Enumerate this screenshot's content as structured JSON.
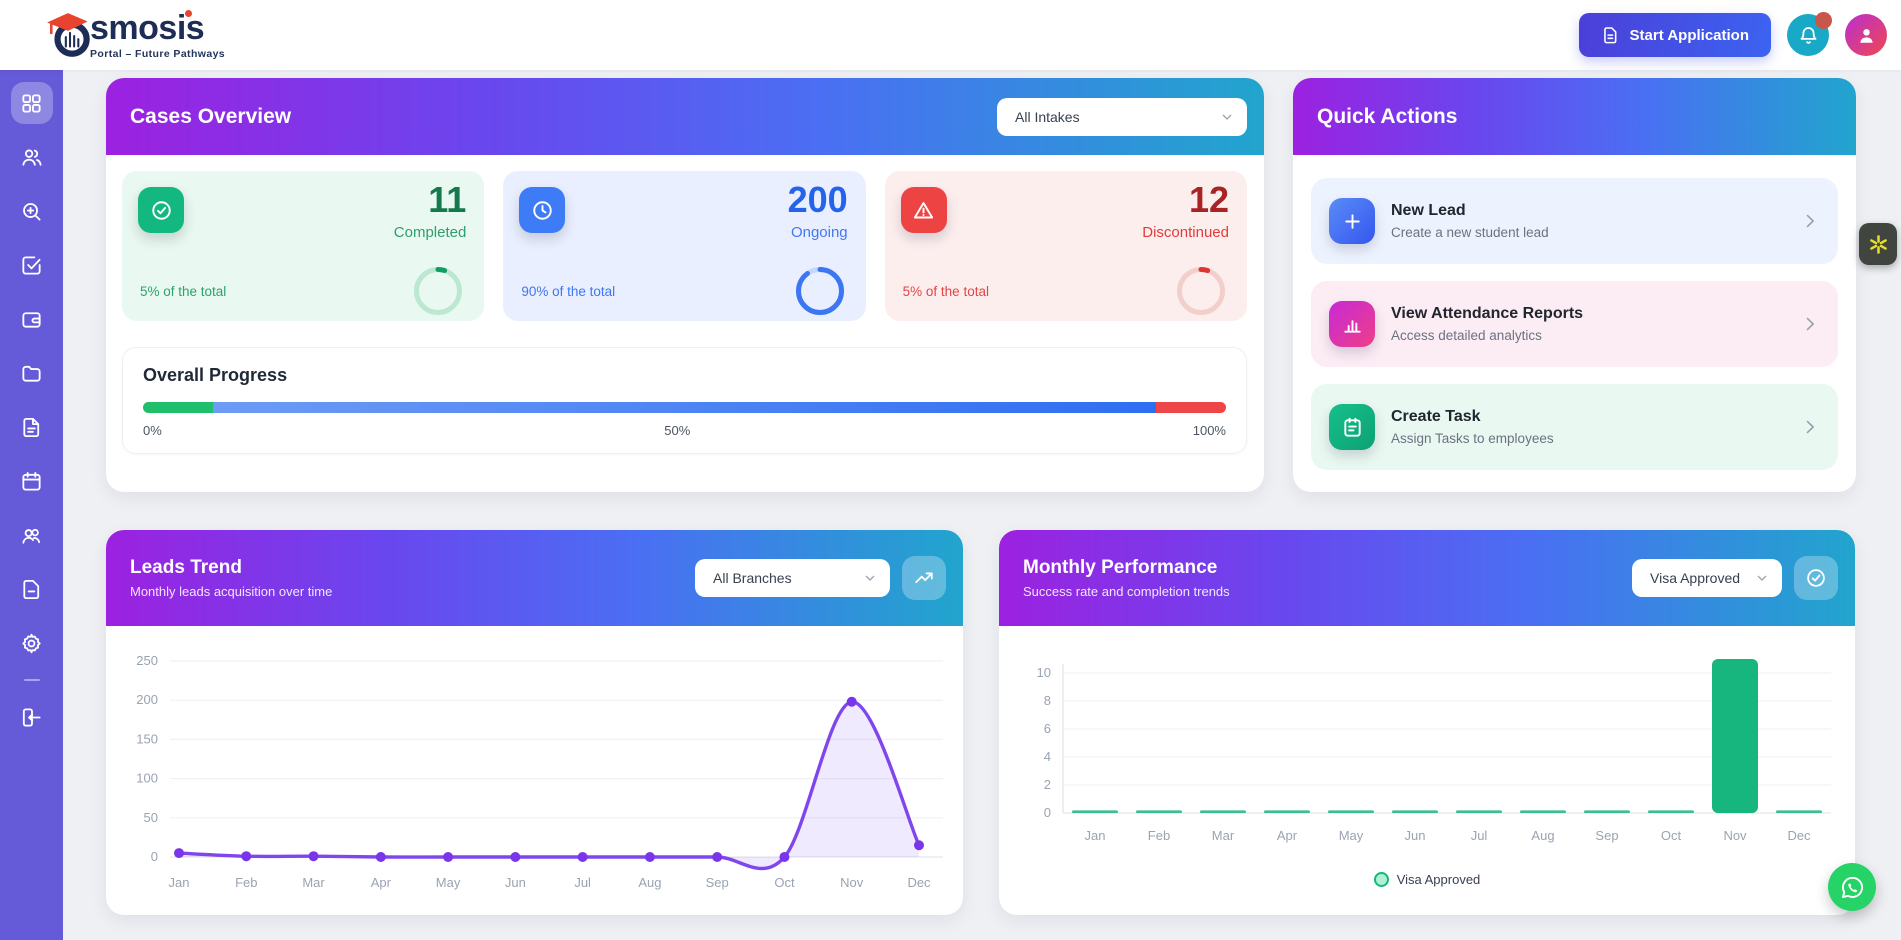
{
  "header": {
    "brand": "smosis",
    "tagline": "Portal – Future Pathways",
    "start_button": {
      "label": "Start Application",
      "icon": "file-doc"
    },
    "bell_icon": "bell",
    "avatar_icon": "person"
  },
  "sidebar": {
    "items": [
      {
        "id": "dashboard",
        "icon": "grid",
        "active": true
      },
      {
        "id": "leads",
        "icon": "users"
      },
      {
        "id": "search",
        "icon": "search-plus"
      },
      {
        "id": "tasks",
        "icon": "check-square"
      },
      {
        "id": "finance",
        "icon": "wallet"
      },
      {
        "id": "files",
        "icon": "folder"
      },
      {
        "id": "documents",
        "icon": "file-text"
      },
      {
        "id": "calendar",
        "icon": "calendar"
      },
      {
        "id": "students",
        "icon": "users-group"
      },
      {
        "id": "reports",
        "icon": "file"
      },
      {
        "id": "settings",
        "icon": "gear"
      },
      {
        "id": "logout",
        "icon": "logout",
        "divider_before": true
      }
    ]
  },
  "cases_overview": {
    "title": "Cases Overview",
    "filter_value": "All Intakes",
    "stats": [
      {
        "value": "11",
        "label": "Completed",
        "sub": "5% of the total",
        "percent": 5,
        "icon": "check-circle",
        "icon_bg": "#13b880",
        "ring_track": "#bce8d2",
        "ring_arc": "#0f9f63"
      },
      {
        "value": "200",
        "label": "Ongoing",
        "sub": "90% of the total",
        "percent": 90,
        "icon": "clock",
        "icon_bg": "#3e7bf7",
        "ring_track": "#c3d6fb",
        "ring_arc": "#3b76f3"
      },
      {
        "value": "12",
        "label": "Discontinued",
        "sub": "5% of the total",
        "percent": 5,
        "icon": "alert-triangle",
        "icon_bg": "#ee4343",
        "ring_track": "#f3cfcb",
        "ring_arc": "#dd3434"
      }
    ],
    "progress": {
      "title": "Overall Progress",
      "segments": [
        {
          "color": "#1fbf6b",
          "width": 6.5
        },
        {
          "color": "#6d9bf5",
          "color2": "#2f6ef2",
          "width": 87
        },
        {
          "color": "#ee4646",
          "width": 6.5
        }
      ],
      "labels": [
        "0%",
        "50%",
        "100%"
      ]
    }
  },
  "quick_actions": {
    "title": "Quick Actions",
    "items": [
      {
        "title": "New Lead",
        "subtitle": "Create a new student lead",
        "icon": "plus"
      },
      {
        "title": "View Attendance Reports",
        "subtitle": "Access detailed analytics",
        "icon": "bar-chart"
      },
      {
        "title": "Create Task",
        "subtitle": "Assign Tasks to employees",
        "icon": "task"
      }
    ]
  },
  "leads_trend": {
    "title": "Leads Trend",
    "subtitle": "Monthly leads acquisition over time",
    "filter_value": "All Branches",
    "button_icon": "trending-up"
  },
  "monthly_performance": {
    "title": "Monthly Performance",
    "subtitle": "Success rate and completion trends",
    "filter_value": "Visa Approved",
    "button_icon": "check-circle",
    "legend": "Visa Approved"
  },
  "chart_data": [
    {
      "type": "line",
      "title": "Leads Trend",
      "x": [
        "Jan",
        "Feb",
        "Mar",
        "Apr",
        "May",
        "Jun",
        "Jul",
        "Aug",
        "Sep",
        "Oct",
        "Nov",
        "Dec"
      ],
      "series": [
        {
          "name": "Leads",
          "values": [
            5,
            1,
            1,
            0,
            0,
            0,
            0,
            0,
            0,
            0,
            198,
            15
          ],
          "color": "#7f46ee",
          "fill": "#8b5cf6"
        }
      ],
      "ylim": [
        0,
        250
      ],
      "yticks": [
        0,
        50,
        100,
        150,
        200,
        250
      ],
      "grid": true,
      "legend_position": "none"
    },
    {
      "type": "bar",
      "title": "Monthly Performance",
      "categories": [
        "Jan",
        "Feb",
        "Mar",
        "Apr",
        "May",
        "Jun",
        "Jul",
        "Aug",
        "Sep",
        "Oct",
        "Nov",
        "Dec"
      ],
      "series": [
        {
          "name": "Visa Approved",
          "values": [
            0,
            0,
            0,
            0,
            0,
            0,
            0,
            0,
            0,
            0,
            11,
            0
          ],
          "color": "#17b67e"
        }
      ],
      "ylim": [
        0,
        11
      ],
      "yticks": [
        0,
        2,
        4,
        6,
        8,
        10
      ],
      "grid": true,
      "legend_position": "bottom"
    }
  ],
  "floating": {
    "whatsapp_icon": "whatsapp",
    "extension_icon": "starburst"
  },
  "ui": {
    "chevron_down": "chevron-down",
    "chevron_right": "chevron-right"
  },
  "colors": {
    "sidebar": "#655ad7",
    "header_gradient_start": "#9c21e0",
    "header_gradient_end": "#21a5cd",
    "whatsapp": "#25d366"
  }
}
